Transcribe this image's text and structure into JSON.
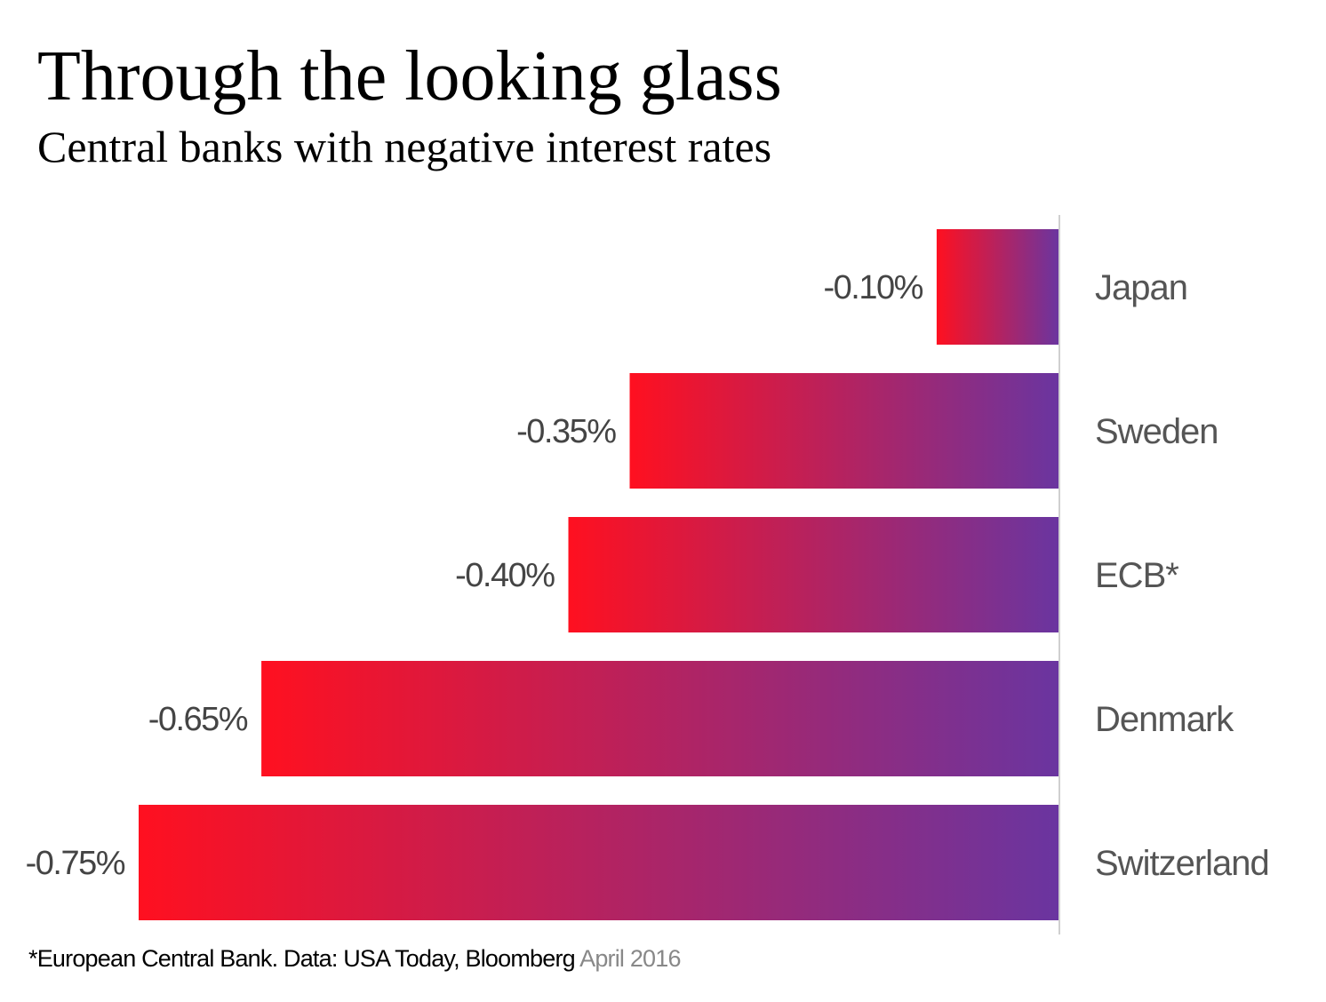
{
  "chart_data": {
    "type": "bar",
    "orientation": "horizontal",
    "title": "Through the looking glass",
    "subtitle": "Central banks with negative interest rates",
    "categories": [
      "Japan",
      "Sweden",
      "ECB*",
      "Denmark",
      "Switzerland"
    ],
    "values": [
      -0.1,
      -0.35,
      -0.4,
      -0.65,
      -0.75
    ],
    "value_labels": [
      "-0.10%",
      "-0.35%",
      "-0.40%",
      "-0.65%",
      "-0.75%"
    ],
    "xlim": [
      -0.75,
      0
    ],
    "grid": false,
    "legend": "none",
    "colors": {
      "gradient_start": "#ff1020",
      "gradient_end": "#6a35a0",
      "axis": "#d0d0d0"
    }
  },
  "footnote": {
    "source": "*European Central Bank. Data: USA Today, Bloomberg",
    "date": "April 2016"
  }
}
